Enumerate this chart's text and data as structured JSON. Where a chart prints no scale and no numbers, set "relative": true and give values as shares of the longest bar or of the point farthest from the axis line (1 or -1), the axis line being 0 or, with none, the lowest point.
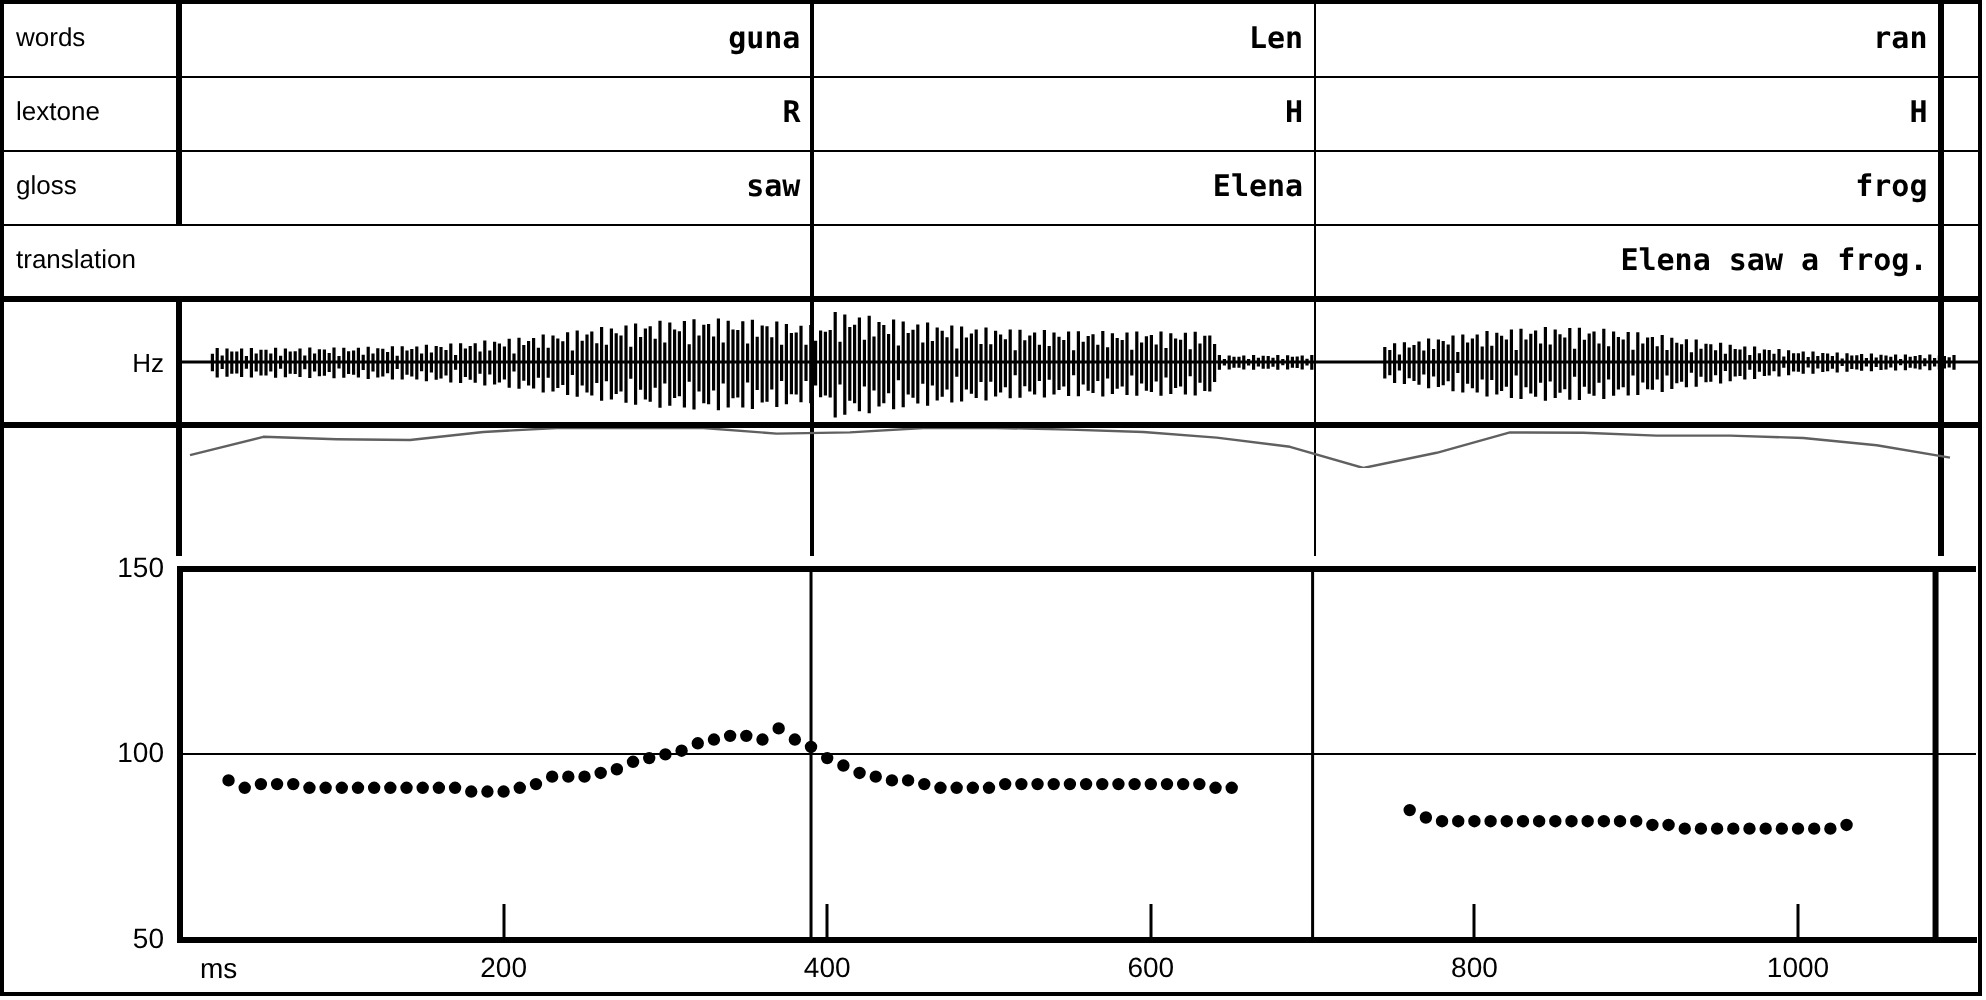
{
  "chart_data": [
    {
      "type": "other",
      "y_categories": [
        "words",
        "lextone",
        "gloss",
        "translation"
      ],
      "annotations": [
        {
          "text": "guna",
          "y": "words"
        },
        {
          "text": "Len",
          "y": "words"
        },
        {
          "text": "ran",
          "y": "words"
        },
        {
          "text": "R",
          "y": "lextone"
        },
        {
          "text": "H",
          "y": "lextone"
        },
        {
          "text": "H",
          "y": "lextone"
        },
        {
          "text": "saw",
          "y": "gloss"
        },
        {
          "text": "Elena",
          "y": "gloss"
        },
        {
          "text": "frog",
          "y": "gloss"
        },
        {
          "text": "Elena saw a frog.",
          "y": "translation"
        }
      ]
    },
    {
      "type": "line",
      "relative": true,
      "color": "#606060",
      "categories": [
        null,
        null,
        null,
        null,
        null,
        null,
        null,
        null,
        null,
        null,
        null,
        null,
        null,
        null,
        null,
        null,
        null,
        null,
        null,
        null,
        null,
        null,
        null,
        null,
        null
      ],
      "values": [
        0.32,
        0.78,
        0.72,
        0.7,
        0.9,
        1,
        1,
        1,
        0.86,
        0.89,
        1,
        1,
        0.96,
        0.9,
        0.76,
        0.53,
        0,
        0.38,
        0.89,
        0.88,
        0.81,
        0.81,
        0.75,
        0.57,
        0.26
      ]
    },
    {
      "type": "scatter",
      "xlabel": "ms",
      "ylabel": "Hz",
      "xlim": [
        0,
        1110
      ],
      "xticks": [
        200,
        400,
        600,
        800,
        1000
      ],
      "ylim": [
        50,
        150
      ],
      "yticks": [
        50,
        100,
        150
      ],
      "grid": "y",
      "marker": "circle",
      "color": "#000000",
      "ref_lines": [
        {
          "axis": "x",
          "value": 390
        },
        {
          "axis": "x",
          "value": 700
        },
        {
          "axis": "x",
          "value": 1085
        }
      ],
      "x": [
        30,
        40,
        50,
        60,
        70,
        80,
        90,
        100,
        110,
        120,
        130,
        140,
        150,
        160,
        170,
        180,
        190,
        200,
        210,
        220,
        230,
        240,
        250,
        260,
        270,
        280,
        290,
        300,
        310,
        320,
        330,
        340,
        350,
        360,
        370,
        380,
        390,
        400,
        410,
        420,
        430,
        440,
        450,
        460,
        470,
        480,
        490,
        500,
        510,
        520,
        530,
        540,
        550,
        560,
        570,
        580,
        590,
        600,
        610,
        620,
        630,
        640,
        650,
        760,
        770,
        780,
        790,
        800,
        810,
        820,
        830,
        840,
        850,
        860,
        870,
        880,
        890,
        900,
        910,
        920,
        930,
        940,
        950,
        960,
        970,
        980,
        990,
        1000,
        1010,
        1020,
        1030
      ],
      "values": [
        93,
        91,
        92,
        92,
        92,
        91,
        91,
        91,
        91,
        91,
        91,
        91,
        91,
        91,
        91,
        90,
        90,
        90,
        91,
        92,
        94,
        94,
        94,
        95,
        96,
        98,
        99,
        100,
        101,
        103,
        104,
        105,
        105,
        104,
        107,
        104,
        102,
        99,
        97,
        95,
        94,
        93,
        93,
        92,
        91,
        91,
        91,
        91,
        92,
        92,
        92,
        92,
        92,
        92,
        92,
        92,
        92,
        92,
        92,
        92,
        92,
        91,
        91,
        85,
        83,
        82,
        82,
        82,
        82,
        82,
        82,
        82,
        82,
        82,
        82,
        82,
        82,
        82,
        81,
        81,
        80,
        80,
        80,
        80,
        80,
        80,
        80,
        80,
        80,
        80,
        81
      ]
    }
  ]
}
